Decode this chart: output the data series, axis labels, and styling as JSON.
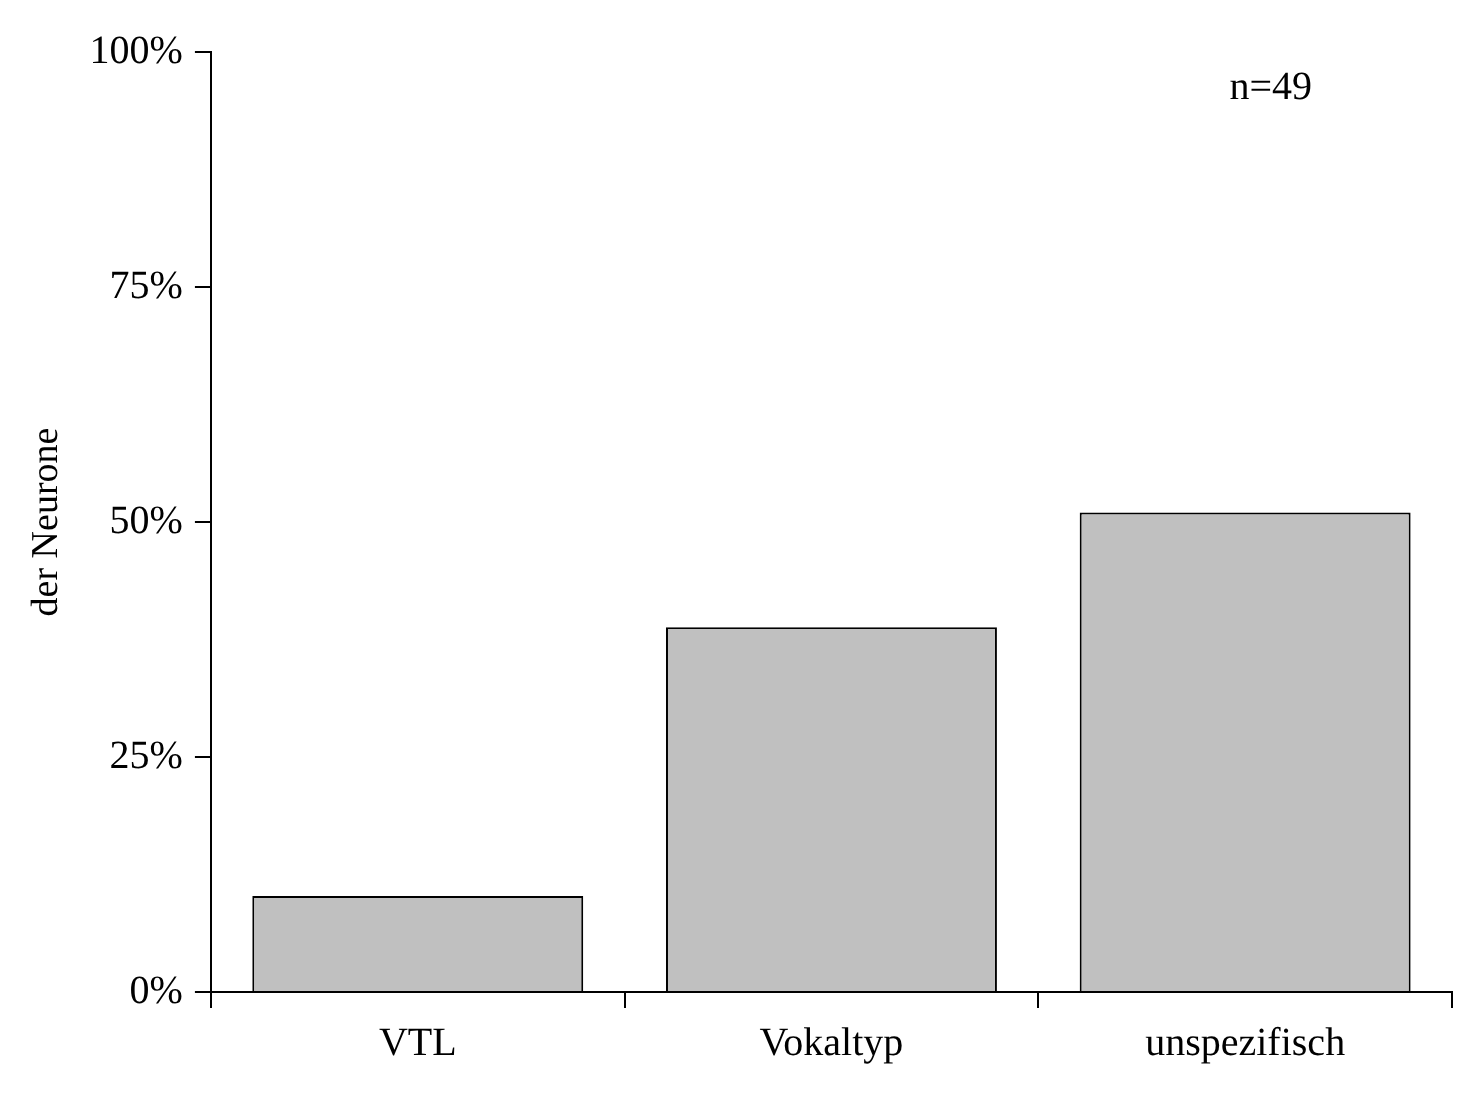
{
  "chart_data": {
    "type": "bar",
    "ylabel": "der Neurone",
    "categories": [
      "VTL",
      "Vokaltyp",
      "unspezifisch"
    ],
    "values": [
      10.2,
      38.8,
      51.0
    ],
    "color": "#c0c0c0",
    "ylim": [
      0,
      100
    ],
    "yticks": [
      {
        "value": 0,
        "label": "0%"
      },
      {
        "value": 25,
        "label": "25%"
      },
      {
        "value": 50,
        "label": "50%"
      },
      {
        "value": 75,
        "label": "75%"
      },
      {
        "value": 100,
        "label": "100%"
      }
    ],
    "grid": false,
    "legend": false,
    "annotations": [
      "n=49"
    ]
  }
}
